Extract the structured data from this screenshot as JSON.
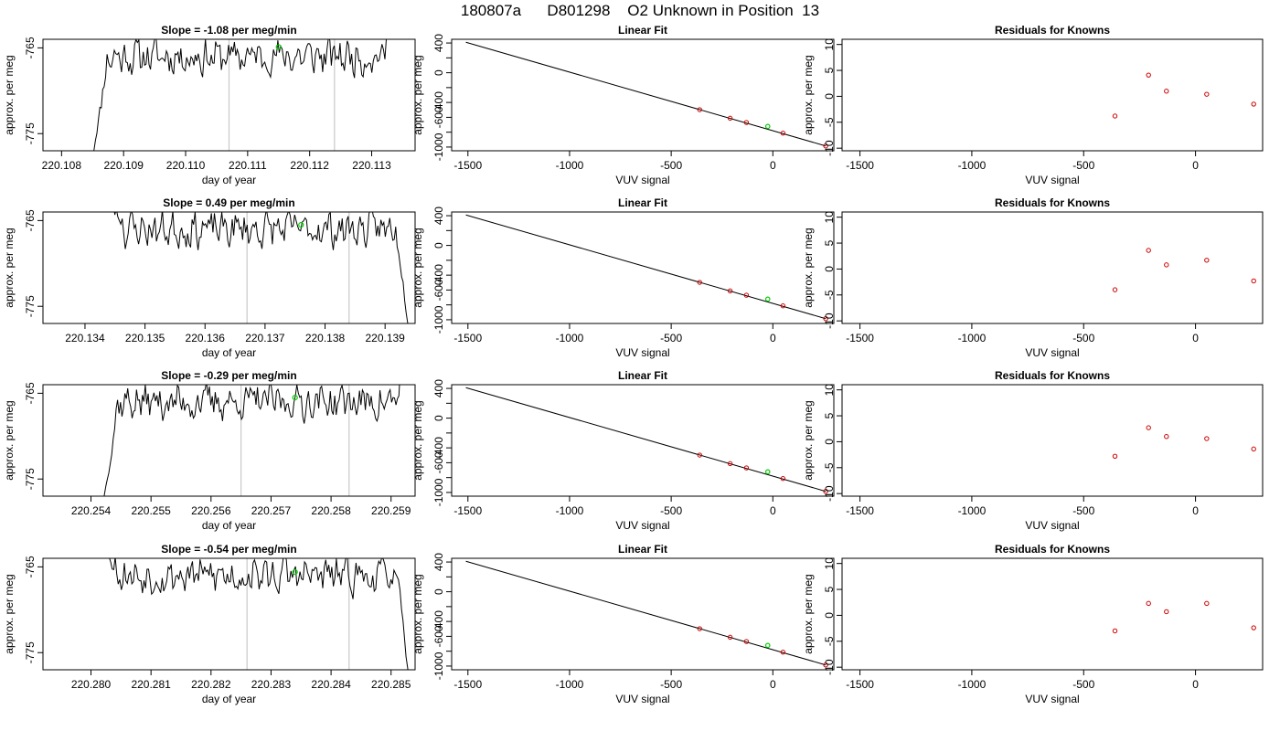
{
  "title": "180807a      D801298    O2 Unknown in Position  13",
  "chart_data": [
    {
      "type": "line",
      "title": "Slope =  -1.08  per meg/min",
      "xlabel": "day of year",
      "ylabel": "approx. per meg",
      "xlim": [
        220.1077,
        220.1137
      ],
      "ylim": [
        -777,
        -764
      ],
      "xticks": [
        "220.108",
        "220.109",
        "220.110",
        "220.111",
        "220.112",
        "220.113"
      ],
      "yticks": [
        "-775",
        "-765"
      ],
      "vlines": [
        220.1107,
        220.1124
      ],
      "marker": {
        "x": 220.1115,
        "y": -764.9
      },
      "trace": {
        "x_start": 220.1085,
        "x_end": 220.1134,
        "rise": "start",
        "exit": "end-up",
        "seed": 11
      }
    },
    {
      "type": "line",
      "title": "Linear Fit",
      "xlabel": "VUV signal",
      "ylabel": "approx. per meg",
      "xlim": [
        -1580,
        300
      ],
      "ylim": [
        -1050,
        450
      ],
      "xticks": [
        "-1500",
        "-1000",
        "-500",
        "0"
      ],
      "yticks": [
        "-1000",
        "-800",
        "-600",
        "-400",
        "-200",
        "0",
        "200",
        "400"
      ],
      "ytick_labels": [
        "-1000",
        "",
        "-600",
        "-400",
        "",
        "0",
        "",
        "400"
      ],
      "line": {
        "x": [
          -1510,
          260
        ],
        "y": [
          410,
          -985
        ]
      },
      "knowns": {
        "x": [
          -360,
          -210,
          -130,
          50,
          260
        ],
        "y": [
          -497,
          -612,
          -670,
          -813,
          -985
        ]
      },
      "unknown": {
        "x": -25,
        "y": -722
      }
    },
    {
      "type": "scatter",
      "title": "Residuals for Knowns",
      "xlabel": "VUV signal",
      "ylabel": "approx. per meg",
      "xlim": [
        -1580,
        300
      ],
      "ylim": [
        -10.5,
        11
      ],
      "xticks": [
        "-1500",
        "-1000",
        "-500",
        "0"
      ],
      "yticks": [
        "-10",
        "-5",
        "0",
        "5",
        "10"
      ],
      "x": [
        -360,
        -210,
        -130,
        50,
        260
      ],
      "y": [
        -3.8,
        4.1,
        1.0,
        0.4,
        -1.5
      ]
    },
    {
      "type": "line",
      "title": "Slope =  0.49  per meg/min",
      "xlabel": "day of year",
      "ylabel": "approx. per meg",
      "xlim": [
        220.1333,
        220.1395
      ],
      "ylim": [
        -777,
        -764
      ],
      "xticks": [
        "220.134",
        "220.135",
        "220.136",
        "220.137",
        "220.138",
        "220.139"
      ],
      "yticks": [
        "-775",
        "-765"
      ],
      "vlines": [
        220.1367,
        220.1384
      ],
      "marker": {
        "x": 220.1376,
        "y": -765.5
      },
      "trace": {
        "x_start": 220.1342,
        "x_end": 220.1394,
        "rise": "start-high",
        "exit": "end-down",
        "seed": 23
      }
    },
    {
      "type": "line",
      "title": "Linear Fit",
      "xlabel": "VUV signal",
      "ylabel": "approx. per meg",
      "xlim": [
        -1580,
        300
      ],
      "ylim": [
        -1050,
        450
      ],
      "xticks": [
        "-1500",
        "-1000",
        "-500",
        "0"
      ],
      "yticks": [
        "-1000",
        "-800",
        "-600",
        "-400",
        "-200",
        "0",
        "200",
        "400"
      ],
      "ytick_labels": [
        "-1000",
        "",
        "-600",
        "-400",
        "",
        "0",
        "",
        "400"
      ],
      "line": {
        "x": [
          -1510,
          260
        ],
        "y": [
          410,
          -985
        ]
      },
      "knowns": {
        "x": [
          -360,
          -210,
          -130,
          50,
          260
        ],
        "y": [
          -497,
          -612,
          -670,
          -813,
          -985
        ]
      },
      "unknown": {
        "x": -25,
        "y": -722
      }
    },
    {
      "type": "scatter",
      "title": "Residuals for Knowns",
      "xlabel": "VUV signal",
      "ylabel": "approx. per meg",
      "xlim": [
        -1580,
        300
      ],
      "ylim": [
        -10.5,
        11
      ],
      "xticks": [
        "-1500",
        "-1000",
        "-500",
        "0"
      ],
      "yticks": [
        "-10",
        "-5",
        "0",
        "5",
        "10"
      ],
      "x": [
        -360,
        -210,
        -130,
        50,
        260
      ],
      "y": [
        -4.0,
        3.6,
        0.8,
        1.7,
        -2.3
      ]
    },
    {
      "type": "line",
      "title": "Slope =  -0.29  per meg/min",
      "xlabel": "day of year",
      "ylabel": "approx. per meg",
      "xlim": [
        220.2532,
        220.2594
      ],
      "ylim": [
        -777,
        -764
      ],
      "xticks": [
        "220.254",
        "220.255",
        "220.256",
        "220.257",
        "220.258",
        "220.259"
      ],
      "yticks": [
        "-775",
        "-765"
      ],
      "vlines": [
        220.2565,
        220.2583
      ],
      "marker": {
        "x": 220.2574,
        "y": -765.5
      },
      "trace": {
        "x_start": 220.2542,
        "x_end": 220.2593,
        "rise": "start",
        "exit": "end-up",
        "seed": 37
      }
    },
    {
      "type": "line",
      "title": "Linear Fit",
      "xlabel": "VUV signal",
      "ylabel": "approx. per meg",
      "xlim": [
        -1580,
        300
      ],
      "ylim": [
        -1050,
        450
      ],
      "xticks": [
        "-1500",
        "-1000",
        "-500",
        "0"
      ],
      "yticks": [
        "-1000",
        "-800",
        "-600",
        "-400",
        "-200",
        "0",
        "200",
        "400"
      ],
      "ytick_labels": [
        "-1000",
        "",
        "-600",
        "-400",
        "",
        "0",
        "",
        "400"
      ],
      "line": {
        "x": [
          -1510,
          260
        ],
        "y": [
          410,
          -985
        ]
      },
      "knowns": {
        "x": [
          -360,
          -210,
          -130,
          50,
          260
        ],
        "y": [
          -497,
          -612,
          -670,
          -813,
          -985
        ]
      },
      "unknown": {
        "x": -25,
        "y": -722
      }
    },
    {
      "type": "scatter",
      "title": "Residuals for Knowns",
      "xlabel": "VUV signal",
      "ylabel": "approx. per meg",
      "xlim": [
        -1580,
        300
      ],
      "ylim": [
        -10.5,
        11
      ],
      "xticks": [
        "-1500",
        "-1000",
        "-500",
        "0"
      ],
      "yticks": [
        "-10",
        "-5",
        "0",
        "5",
        "10"
      ],
      "x": [
        -360,
        -210,
        -130,
        50,
        260
      ],
      "y": [
        -2.8,
        2.7,
        1.0,
        0.6,
        -1.4
      ]
    },
    {
      "type": "line",
      "title": "Slope =  -0.54  per meg/min",
      "xlabel": "day of year",
      "ylabel": "approx. per meg",
      "xlim": [
        220.2792,
        220.2854
      ],
      "ylim": [
        -777,
        -764
      ],
      "xticks": [
        "220.280",
        "220.281",
        "220.282",
        "220.283",
        "220.284",
        "220.285"
      ],
      "yticks": [
        "-775",
        "-765"
      ],
      "vlines": [
        220.2826,
        220.2843
      ],
      "marker": {
        "x": 220.2834,
        "y": -765.6
      },
      "trace": {
        "x_start": 220.28,
        "x_end": 220.2853,
        "rise": "start-high",
        "exit": "end-down",
        "seed": 53
      }
    },
    {
      "type": "line",
      "title": "Linear Fit",
      "xlabel": "VUV signal",
      "ylabel": "approx. per meg",
      "xlim": [
        -1580,
        300
      ],
      "ylim": [
        -1050,
        450
      ],
      "xticks": [
        "-1500",
        "-1000",
        "-500",
        "0"
      ],
      "yticks": [
        "-1000",
        "-800",
        "-600",
        "-400",
        "-200",
        "0",
        "200",
        "400"
      ],
      "ytick_labels": [
        "-1000",
        "",
        "-600",
        "-400",
        "",
        "0",
        "",
        "400"
      ],
      "line": {
        "x": [
          -1510,
          260
        ],
        "y": [
          410,
          -985
        ]
      },
      "knowns": {
        "x": [
          -360,
          -210,
          -130,
          50,
          260
        ],
        "y": [
          -497,
          -612,
          -670,
          -813,
          -985
        ]
      },
      "unknown": {
        "x": -25,
        "y": -722
      }
    },
    {
      "type": "scatter",
      "title": "Residuals for Knowns",
      "xlabel": "VUV signal",
      "ylabel": "approx. per meg",
      "xlim": [
        -1580,
        300
      ],
      "ylim": [
        -10.5,
        11
      ],
      "xticks": [
        "-1500",
        "-1000",
        "-500",
        "0"
      ],
      "yticks": [
        "-10",
        "-5",
        "0",
        "5",
        "10"
      ],
      "x": [
        -360,
        -210,
        -130,
        50,
        260
      ],
      "y": [
        -3.0,
        2.3,
        0.7,
        2.3,
        -2.4
      ]
    }
  ],
  "colors": {
    "trace": "#000000",
    "known": "#cc0000",
    "unknown": "#00cc00",
    "vline": "#c8c8c8"
  }
}
